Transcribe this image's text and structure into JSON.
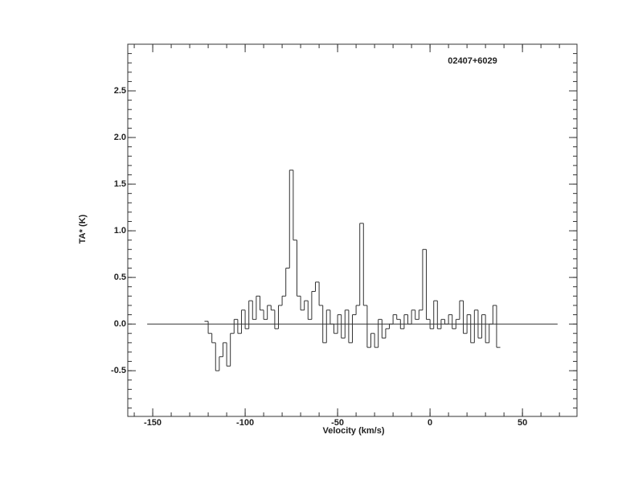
{
  "chart_data": {
    "type": "step",
    "annotation": "02407+6029",
    "x_label": "Velocity (km/s)",
    "y_label": "TA* (K)",
    "color": "#333333",
    "x": [
      -121,
      -119,
      -117,
      -115,
      -113,
      -111,
      -109,
      -107,
      -105,
      -103,
      -101,
      -99,
      -97,
      -95,
      -93,
      -91,
      -89,
      -87,
      -85,
      -83,
      -81,
      -79,
      -77,
      -75,
      -73,
      -71,
      -69,
      -67,
      -65,
      -63,
      -61,
      -59,
      -57,
      -55,
      -53,
      -51,
      -49,
      -47,
      -45,
      -43,
      -41,
      -39,
      -37,
      -35,
      -33,
      -31,
      -29,
      -27,
      -25,
      -23,
      -21,
      -19,
      -17,
      -15,
      -13,
      -11,
      -9,
      -7,
      -5,
      -3,
      -1,
      1,
      3,
      5,
      7,
      9,
      11,
      13,
      15,
      17,
      19,
      21,
      23,
      25,
      27,
      29,
      31,
      33,
      35,
      37
    ],
    "values": [
      0.03,
      -0.1,
      -0.2,
      -0.5,
      -0.35,
      -0.2,
      -0.45,
      -0.1,
      0.05,
      -0.1,
      0.15,
      -0.05,
      0.25,
      0.05,
      0.3,
      0.15,
      0.05,
      0.2,
      0.15,
      -0.05,
      0.2,
      0.3,
      0.6,
      1.65,
      0.9,
      0.3,
      0.15,
      0.25,
      0.05,
      0.35,
      0.45,
      0.2,
      -0.2,
      0.15,
      0.0,
      -0.1,
      0.1,
      -0.15,
      0.15,
      -0.2,
      0.1,
      0.2,
      1.08,
      0.2,
      -0.25,
      -0.1,
      -0.25,
      0.05,
      -0.15,
      -0.05,
      0.0,
      0.1,
      0.05,
      -0.05,
      0.1,
      0.0,
      0.15,
      0.05,
      0.15,
      0.8,
      0.05,
      -0.05,
      0.25,
      -0.05,
      0.05,
      0.0,
      0.1,
      -0.05,
      0.05,
      0.25,
      -0.1,
      0.1,
      -0.2,
      0.15,
      -0.15,
      0.1,
      -0.2,
      0.0,
      0.2,
      -0.25
    ],
    "baseline_x": [
      -153,
      69
    ],
    "baseline_y": 0,
    "xlim": [
      -163.5,
      79.5
    ],
    "ylim": [
      -0.99,
      3.0
    ],
    "xticks": [
      -150,
      -100,
      -50,
      0,
      50
    ],
    "yticks": [
      -0.5,
      {
        "value": 0,
        "label": "0.0"
      },
      0.5,
      {
        "value": 1,
        "label": "1.0"
      },
      1.5,
      {
        "value": 2,
        "label": "2.0"
      },
      2.5
    ],
    "xminorticks": [
      -160,
      -150,
      -140,
      -130,
      -120,
      -110,
      -100,
      -90,
      -80,
      -70,
      -60,
      -50,
      -40,
      -30,
      -20,
      -10,
      0,
      10,
      20,
      30,
      40,
      50,
      60,
      70
    ],
    "yminorticks": [
      -0.9,
      -0.8,
      -0.7,
      -0.6,
      -0.5,
      -0.4,
      -0.3,
      -0.2,
      -0.1,
      0,
      0.1,
      0.2,
      0.3,
      0.4,
      0.5,
      0.6,
      0.7,
      0.8,
      0.9,
      1,
      1.1,
      1.2,
      1.3,
      1.4,
      1.5,
      1.6,
      1.7,
      1.8,
      1.9,
      2,
      2.1,
      2.2,
      2.3,
      2.4,
      2.5,
      2.6,
      2.7,
      2.8,
      2.9
    ]
  }
}
